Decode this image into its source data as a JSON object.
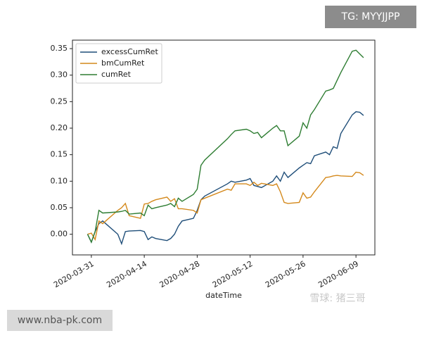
{
  "chart_data": {
    "type": "line",
    "x_label": "dateTime",
    "x": [
      "2020-03-30",
      "2020-03-31",
      "2020-04-01",
      "2020-04-02",
      "2020-04-03",
      "2020-04-07",
      "2020-04-08",
      "2020-04-09",
      "2020-04-10",
      "2020-04-13",
      "2020-04-14",
      "2020-04-15",
      "2020-04-16",
      "2020-04-17",
      "2020-04-20",
      "2020-04-21",
      "2020-04-22",
      "2020-04-23",
      "2020-04-24",
      "2020-04-27",
      "2020-04-28",
      "2020-04-29",
      "2020-04-30",
      "2020-05-06",
      "2020-05-07",
      "2020-05-08",
      "2020-05-11",
      "2020-05-12",
      "2020-05-13",
      "2020-05-14",
      "2020-05-15",
      "2020-05-18",
      "2020-05-19",
      "2020-05-20",
      "2020-05-21",
      "2020-05-22",
      "2020-05-25",
      "2020-05-26",
      "2020-05-27",
      "2020-05-28",
      "2020-05-29",
      "2020-06-01",
      "2020-06-02",
      "2020-06-03",
      "2020-06-04",
      "2020-06-05",
      "2020-06-08",
      "2020-06-09",
      "2020-06-10",
      "2020-06-11"
    ],
    "series": [
      {
        "name": "excessCumRet",
        "color": "#1f4e79",
        "values": [
          0.0,
          -0.015,
          0.005,
          0.02,
          0.025,
          0.0,
          -0.018,
          0.005,
          0.006,
          0.007,
          0.005,
          -0.01,
          -0.005,
          -0.008,
          -0.012,
          -0.008,
          0.0,
          0.015,
          0.025,
          0.03,
          0.045,
          0.065,
          0.072,
          0.095,
          0.1,
          0.098,
          0.102,
          0.105,
          0.092,
          0.09,
          0.088,
          0.1,
          0.11,
          0.1,
          0.117,
          0.107,
          0.125,
          0.13,
          0.135,
          0.133,
          0.148,
          0.155,
          0.15,
          0.165,
          0.162,
          0.19,
          0.225,
          0.231,
          0.23,
          0.224
        ]
      },
      {
        "name": "bmCumRet",
        "color": "#d4891c",
        "values": [
          0.0,
          0.002,
          -0.01,
          0.025,
          0.02,
          0.045,
          0.05,
          0.058,
          0.035,
          0.03,
          0.057,
          0.058,
          0.062,
          0.065,
          0.07,
          0.062,
          0.067,
          0.048,
          0.048,
          0.045,
          0.04,
          0.065,
          0.068,
          0.085,
          0.083,
          0.095,
          0.095,
          0.092,
          0.098,
          0.092,
          0.096,
          0.092,
          0.095,
          0.08,
          0.06,
          0.058,
          0.06,
          0.078,
          0.068,
          0.07,
          0.08,
          0.107,
          0.108,
          0.11,
          0.111,
          0.11,
          0.109,
          0.117,
          0.116,
          0.111
        ]
      },
      {
        "name": "cumRet",
        "color": "#2e7d32",
        "values": [
          0.0,
          -0.015,
          0.005,
          0.045,
          0.04,
          0.042,
          0.043,
          0.045,
          0.038,
          0.04,
          0.035,
          0.055,
          0.048,
          0.05,
          0.055,
          0.058,
          0.052,
          0.068,
          0.062,
          0.075,
          0.085,
          0.13,
          0.14,
          0.18,
          0.188,
          0.195,
          0.198,
          0.195,
          0.19,
          0.192,
          0.182,
          0.2,
          0.205,
          0.195,
          0.195,
          0.167,
          0.185,
          0.21,
          0.2,
          0.225,
          0.235,
          0.27,
          0.272,
          0.275,
          0.29,
          0.305,
          0.345,
          0.347,
          0.34,
          0.333
        ]
      }
    ],
    "xlim": [
      "2020-03-26",
      "2020-06-14"
    ],
    "xticks": [
      "2020-03-31",
      "2020-04-14",
      "2020-04-28",
      "2020-05-12",
      "2020-05-26",
      "2020-06-09"
    ],
    "ylim": [
      -0.039,
      0.366
    ],
    "yticks": [
      {
        "value": 0,
        "label": "0.00"
      },
      0.05,
      {
        "value": 0.1,
        "label": "0.10"
      },
      0.15,
      {
        "value": 0.2,
        "label": "0.20"
      },
      0.25,
      {
        "value": 0.3,
        "label": "0.30"
      },
      0.35
    ],
    "legend": "upper left",
    "grid": false
  },
  "watermarks": {
    "top_right": "TG: MYYJJPP",
    "bottom_left": "www.nba-pk.com",
    "bottom_right": "雪球: 猪三哥"
  }
}
